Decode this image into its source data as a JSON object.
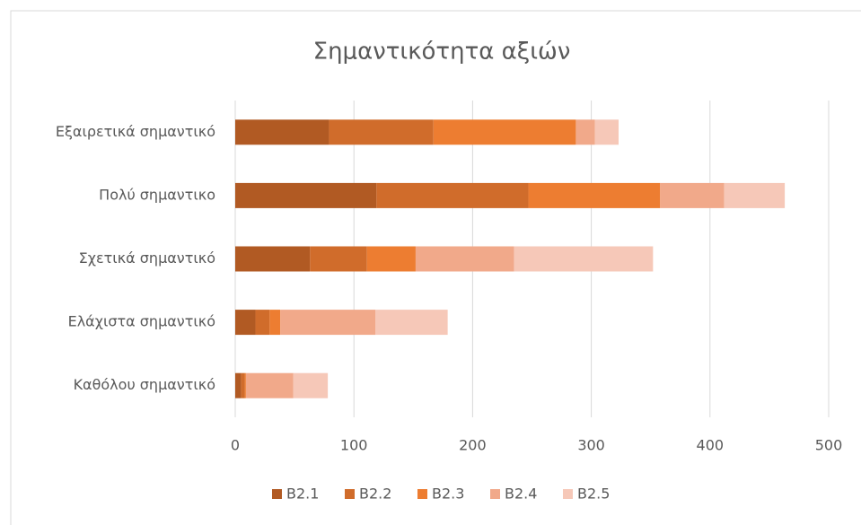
{
  "chart_data": {
    "type": "stacked_barh",
    "title": "Σημαντικότητα αξιών",
    "categories": [
      "Εξαιρετικά σημαντικό",
      "Πολύ σημαντικο",
      "Σχετικά σημαντικό",
      "Ελάχιστα σημαντικό",
      "Καθόλου σημαντικό"
    ],
    "series": [
      {
        "name": "B2.1",
        "color": "#b15a23",
        "values": [
          79,
          119,
          63,
          17,
          5
        ]
      },
      {
        "name": "B2.2",
        "color": "#d06c2b",
        "values": [
          88,
          128,
          48,
          12,
          3
        ]
      },
      {
        "name": "B2.3",
        "color": "#ed7d31",
        "values": [
          120,
          111,
          41,
          9,
          1
        ]
      },
      {
        "name": "B2.4",
        "color": "#f1a98a",
        "values": [
          16,
          54,
          83,
          80,
          40
        ]
      },
      {
        "name": "B2.5",
        "color": "#f6c8b8",
        "values": [
          20,
          51,
          117,
          61,
          29
        ]
      }
    ],
    "xlim": [
      0,
      500
    ],
    "xticks": [
      0,
      100,
      200,
      300,
      400,
      500
    ],
    "grid": true,
    "legend": "bottom"
  }
}
